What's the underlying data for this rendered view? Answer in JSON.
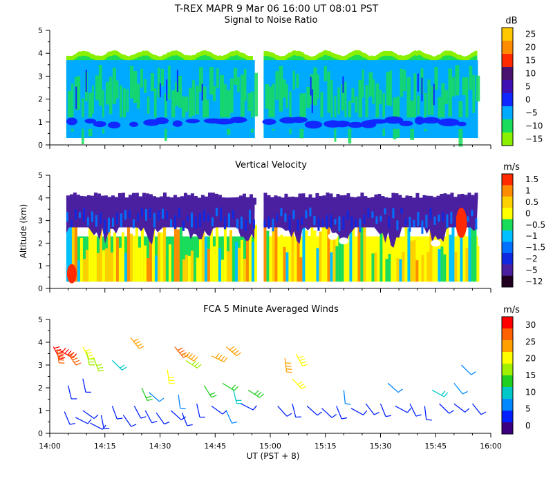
{
  "chart_data": {
    "type": "heatmap",
    "title": "T-REX   MAPR   9 Mar 06   16:00 UT   08:01   PST",
    "xlabel": "UT  (PST + 8)",
    "ylabel": "Altitude (km)",
    "x_ticks": [
      "14:00",
      "14:15",
      "14:30",
      "14:45",
      "15:00",
      "15:15",
      "15:30",
      "15:45",
      "16:00"
    ],
    "x_range_minutes": [
      0,
      120
    ],
    "y_ticks": [
      "0",
      "1",
      "2",
      "3",
      "4",
      "5"
    ],
    "y_range_km": [
      0,
      5
    ],
    "data_gap_minutes": [
      56,
      58
    ],
    "panels": [
      {
        "id": "snr",
        "title": "Signal to Noise Ratio",
        "unit": "dB",
        "colorbar_labels": [
          "25",
          "20",
          "15",
          "10",
          "5",
          "0",
          "−5",
          "−10",
          "−15"
        ],
        "colors": [
          "#ffc800",
          "#ff8c00",
          "#ff2a00",
          "#4a1270",
          "#3f10b4",
          "#1028ff",
          "#00aaff",
          "#19dc5a",
          "#88f000"
        ],
        "base_altitude_km": 0.3,
        "top_altitude_km": 4.0,
        "features": "Weak echo layer near 1 km, broad 3-4 km blue/green band, SNR mostly between -15 and 5 dB"
      },
      {
        "id": "vv",
        "title": "Vertical Velocity",
        "unit": "m/s",
        "colorbar_labels": [
          "1.5",
          "1",
          "0.5",
          "0",
          "−0.5",
          "−1",
          "−1.5",
          "−2",
          "−5",
          "−12"
        ],
        "colors": [
          "#ff2a00",
          "#ff8c00",
          "#ffd000",
          "#ffff00",
          "#19dc5a",
          "#00c0ff",
          "#0070ff",
          "#1028e0",
          "#4a20a0",
          "#200020"
        ],
        "base_altitude_km": 0.3,
        "top_altitude_km": 4.0,
        "features": "Strong downward motion (purple) above 2.8 km, weak upward motion (yellow/orange) below 2 km"
      },
      {
        "id": "wind",
        "title": "FCA 5 Minute Averaged Winds",
        "unit": "m/s",
        "colorbar_labels": [
          "30",
          "25",
          "20",
          "15",
          "10",
          "5",
          "0"
        ],
        "colors": [
          "#ff0000",
          "#ff6000",
          "#ffa000",
          "#ffff00",
          "#a0f000",
          "#20d020",
          "#00c8c8",
          "#0088ff",
          "#0020ff",
          "#3a0080"
        ],
        "wind_barbs": [
          {
            "t": 4,
            "alt": 0.95,
            "speed": 3
          },
          {
            "t": 7,
            "alt": 0.7,
            "speed": 2
          },
          {
            "t": 9,
            "alt": 1.0,
            "speed": 4
          },
          {
            "t": 11,
            "alt": 0.45,
            "speed": 2
          },
          {
            "t": 14,
            "alt": 0.8,
            "speed": 3
          },
          {
            "t": 17,
            "alt": 1.2,
            "speed": 4
          },
          {
            "t": 20,
            "alt": 0.8,
            "speed": 2
          },
          {
            "t": 23,
            "alt": 1.2,
            "speed": 5
          },
          {
            "t": 26,
            "alt": 1.0,
            "speed": 3
          },
          {
            "t": 29,
            "alt": 0.9,
            "speed": 4
          },
          {
            "t": 33,
            "alt": 1.0,
            "speed": 5
          },
          {
            "t": 36,
            "alt": 0.9,
            "speed": 4
          },
          {
            "t": 40,
            "alt": 1.3,
            "speed": 4
          },
          {
            "t": 44,
            "alt": 1.2,
            "speed": 5
          },
          {
            "t": 48,
            "alt": 1.0,
            "speed": 6
          },
          {
            "t": 52,
            "alt": 1.3,
            "speed": 5
          },
          {
            "t": 62,
            "alt": 1.2,
            "speed": 4
          },
          {
            "t": 66,
            "alt": 1.3,
            "speed": 5
          },
          {
            "t": 70,
            "alt": 1.2,
            "speed": 4
          },
          {
            "t": 74,
            "alt": 1.1,
            "speed": 4
          },
          {
            "t": 78,
            "alt": 1.2,
            "speed": 5
          },
          {
            "t": 82,
            "alt": 1.1,
            "speed": 4
          },
          {
            "t": 86,
            "alt": 1.3,
            "speed": 3
          },
          {
            "t": 90,
            "alt": 1.3,
            "speed": 4
          },
          {
            "t": 94,
            "alt": 1.2,
            "speed": 4
          },
          {
            "t": 98,
            "alt": 1.3,
            "speed": 3
          },
          {
            "t": 102,
            "alt": 1.2,
            "speed": 4
          },
          {
            "t": 106,
            "alt": 1.3,
            "speed": 5
          },
          {
            "t": 110,
            "alt": 1.3,
            "speed": 4
          },
          {
            "t": 115,
            "alt": 1.3,
            "speed": 3
          },
          {
            "t": 5,
            "alt": 2.1,
            "speed": 5
          },
          {
            "t": 9,
            "alt": 2.4,
            "speed": 4
          },
          {
            "t": 25,
            "alt": 2.0,
            "speed": 14
          },
          {
            "t": 27,
            "alt": 1.8,
            "speed": 6
          },
          {
            "t": 35,
            "alt": 1.7,
            "speed": 6
          },
          {
            "t": 42,
            "alt": 2.1,
            "speed": 12
          },
          {
            "t": 47,
            "alt": 2.2,
            "speed": 12
          },
          {
            "t": 50,
            "alt": 1.9,
            "speed": 9
          },
          {
            "t": 54,
            "alt": 1.9,
            "speed": 15
          },
          {
            "t": 66,
            "alt": 2.4,
            "speed": 19
          },
          {
            "t": 80,
            "alt": 1.9,
            "speed": 8
          },
          {
            "t": 92,
            "alt": 2.2,
            "speed": 7
          },
          {
            "t": 104,
            "alt": 1.9,
            "speed": 9
          },
          {
            "t": 110,
            "alt": 2.2,
            "speed": 6
          },
          {
            "t": 112,
            "alt": 3.0,
            "speed": 8
          },
          {
            "t": 1,
            "alt": 3.8,
            "speed": 29
          },
          {
            "t": 2,
            "alt": 3.7,
            "speed": 28
          },
          {
            "t": 3,
            "alt": 3.6,
            "speed": 29
          },
          {
            "t": 5,
            "alt": 3.5,
            "speed": 27
          },
          {
            "t": 9,
            "alt": 3.8,
            "speed": 21
          },
          {
            "t": 10,
            "alt": 3.6,
            "speed": 18
          },
          {
            "t": 12,
            "alt": 3.3,
            "speed": 17
          },
          {
            "t": 17,
            "alt": 3.2,
            "speed": 11
          },
          {
            "t": 22,
            "alt": 4.2,
            "speed": 25
          },
          {
            "t": 34,
            "alt": 3.8,
            "speed": 26
          },
          {
            "t": 36,
            "alt": 3.5,
            "speed": 22
          },
          {
            "t": 37,
            "alt": 3.2,
            "speed": 18
          },
          {
            "t": 32,
            "alt": 2.8,
            "speed": 19
          },
          {
            "t": 44,
            "alt": 3.4,
            "speed": 25
          },
          {
            "t": 48,
            "alt": 3.8,
            "speed": 22
          },
          {
            "t": 64,
            "alt": 3.3,
            "speed": 22
          },
          {
            "t": 67,
            "alt": 3.5,
            "speed": 21
          }
        ]
      }
    ]
  }
}
